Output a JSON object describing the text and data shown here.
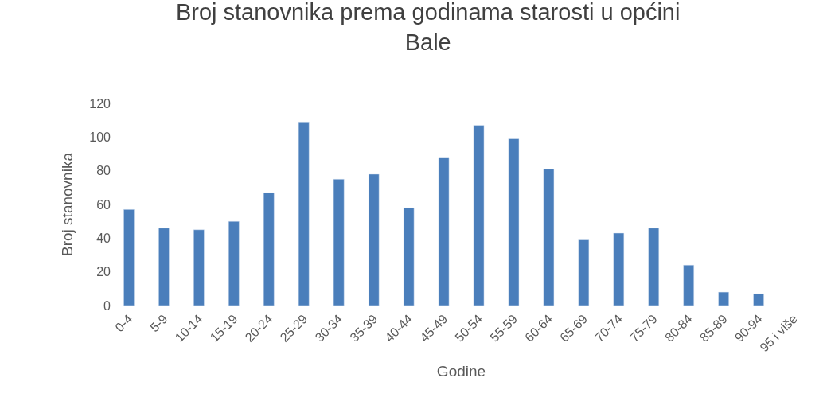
{
  "chart_data": {
    "type": "bar",
    "title": "Broj stanovnika prema godinama starosti u općini Bale",
    "xlabel": "Godine",
    "ylabel": "Broj stanovnika",
    "categories": [
      "0-4",
      "5-9",
      "10-14",
      "15-19",
      "20-24",
      "25-29",
      "30-34",
      "35-39",
      "40-44",
      "45-49",
      "50-54",
      "55-59",
      "60-64",
      "65-69",
      "70-74",
      "75-79",
      "80-84",
      "85-89",
      "90-94",
      "95 i više"
    ],
    "values": [
      57,
      46,
      45,
      50,
      67,
      109,
      75,
      78,
      58,
      88,
      107,
      99,
      81,
      39,
      43,
      46,
      24,
      8,
      7,
      null
    ],
    "color": "#4a7ebb",
    "ylim": [
      0,
      120
    ],
    "yticks": [
      0,
      20,
      40,
      60,
      80,
      100,
      120
    ],
    "grid": false,
    "legend": false
  }
}
